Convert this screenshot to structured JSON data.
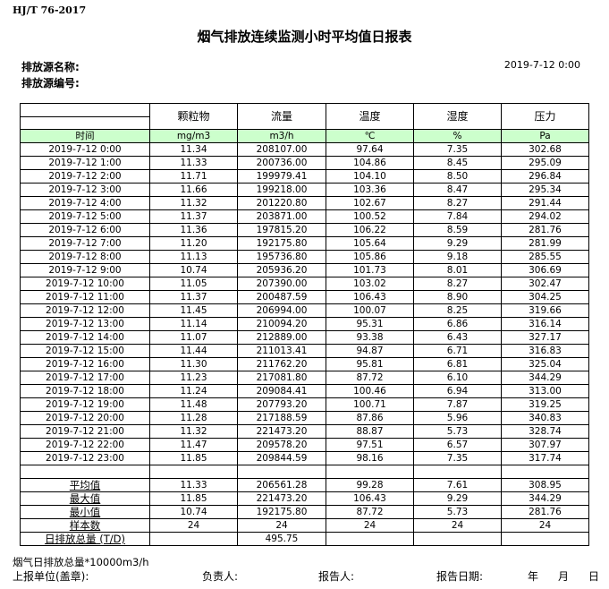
{
  "standard": "HJ/T  76-2017",
  "title": "烟气排放连续监测小时平均值日报表",
  "source_name_label": "排放源名称:",
  "source_code_label": "排放源编号:",
  "report_datetime": "2019-7-12 0:00",
  "table": {
    "headers": [
      "颗粒物",
      "流量",
      "温度",
      "湿度",
      "压力"
    ],
    "time_label": "时间",
    "units": [
      "mg/m3",
      "m3/h",
      "℃",
      "%",
      "Pa"
    ],
    "unit_row_color": "#ccffcc",
    "rows": [
      [
        "2019-7-12 0:00",
        "11.34",
        "208107.00",
        "97.64",
        "7.35",
        "302.68"
      ],
      [
        "2019-7-12 1:00",
        "11.33",
        "200736.00",
        "104.86",
        "8.45",
        "295.09"
      ],
      [
        "2019-7-12 2:00",
        "11.71",
        "199979.41",
        "104.10",
        "8.50",
        "296.84"
      ],
      [
        "2019-7-12 3:00",
        "11.66",
        "199218.00",
        "103.36",
        "8.47",
        "295.34"
      ],
      [
        "2019-7-12 4:00",
        "11.32",
        "201220.80",
        "102.67",
        "8.27",
        "291.44"
      ],
      [
        "2019-7-12 5:00",
        "11.37",
        "203871.00",
        "100.52",
        "7.84",
        "294.02"
      ],
      [
        "2019-7-12 6:00",
        "11.36",
        "197815.20",
        "106.22",
        "8.59",
        "281.76"
      ],
      [
        "2019-7-12 7:00",
        "11.20",
        "192175.80",
        "105.64",
        "9.29",
        "281.99"
      ],
      [
        "2019-7-12 8:00",
        "11.13",
        "195736.80",
        "105.86",
        "9.18",
        "285.55"
      ],
      [
        "2019-7-12 9:00",
        "10.74",
        "205936.20",
        "101.73",
        "8.01",
        "306.69"
      ],
      [
        "2019-7-12 10:00",
        "11.05",
        "207390.00",
        "103.02",
        "8.27",
        "302.47"
      ],
      [
        "2019-7-12 11:00",
        "11.37",
        "200487.59",
        "106.43",
        "8.90",
        "304.25"
      ],
      [
        "2019-7-12 12:00",
        "11.45",
        "206994.00",
        "100.07",
        "8.25",
        "319.66"
      ],
      [
        "2019-7-12 13:00",
        "11.14",
        "210094.20",
        "95.31",
        "6.86",
        "316.14"
      ],
      [
        "2019-7-12 14:00",
        "11.07",
        "212889.00",
        "93.38",
        "6.43",
        "327.17"
      ],
      [
        "2019-7-12 15:00",
        "11.44",
        "211013.41",
        "94.87",
        "6.71",
        "316.83"
      ],
      [
        "2019-7-12 16:00",
        "11.30",
        "211762.20",
        "95.81",
        "6.81",
        "325.04"
      ],
      [
        "2019-7-12 17:00",
        "11.23",
        "217081.80",
        "87.72",
        "6.10",
        "344.29"
      ],
      [
        "2019-7-12 18:00",
        "11.24",
        "209084.41",
        "100.46",
        "6.94",
        "313.00"
      ],
      [
        "2019-7-12 19:00",
        "11.48",
        "207793.20",
        "100.71",
        "7.87",
        "319.25"
      ],
      [
        "2019-7-12 20:00",
        "11.28",
        "217188.59",
        "87.86",
        "5.96",
        "340.83"
      ],
      [
        "2019-7-12 21:00",
        "11.32",
        "221473.20",
        "88.87",
        "5.73",
        "328.74"
      ],
      [
        "2019-7-12 22:00",
        "11.47",
        "209578.20",
        "97.51",
        "6.57",
        "307.97"
      ],
      [
        "2019-7-12 23:00",
        "11.85",
        "209844.59",
        "98.16",
        "7.35",
        "317.74"
      ]
    ],
    "stats": [
      [
        "平均值",
        "11.33",
        "206561.28",
        "99.28",
        "7.61",
        "308.95"
      ],
      [
        "最大值",
        "11.85",
        "221473.20",
        "106.43",
        "9.29",
        "344.29"
      ],
      [
        "最小值",
        "10.74",
        "192175.80",
        "87.72",
        "5.73",
        "281.76"
      ],
      [
        "样本数",
        "24",
        "24",
        "24",
        "24",
        "24"
      ],
      [
        "日排放总量 (T/D)",
        "",
        "495.75",
        "",
        "",
        ""
      ]
    ]
  },
  "footer": {
    "note": "烟气日排放总量*10000m3/h",
    "unit_label": "上报单位(盖章):",
    "responsible_label": "负责人:",
    "reporter_label": "报告人:",
    "report_date_label": "报告日期:",
    "year": "年",
    "month": "月",
    "day": "日"
  }
}
